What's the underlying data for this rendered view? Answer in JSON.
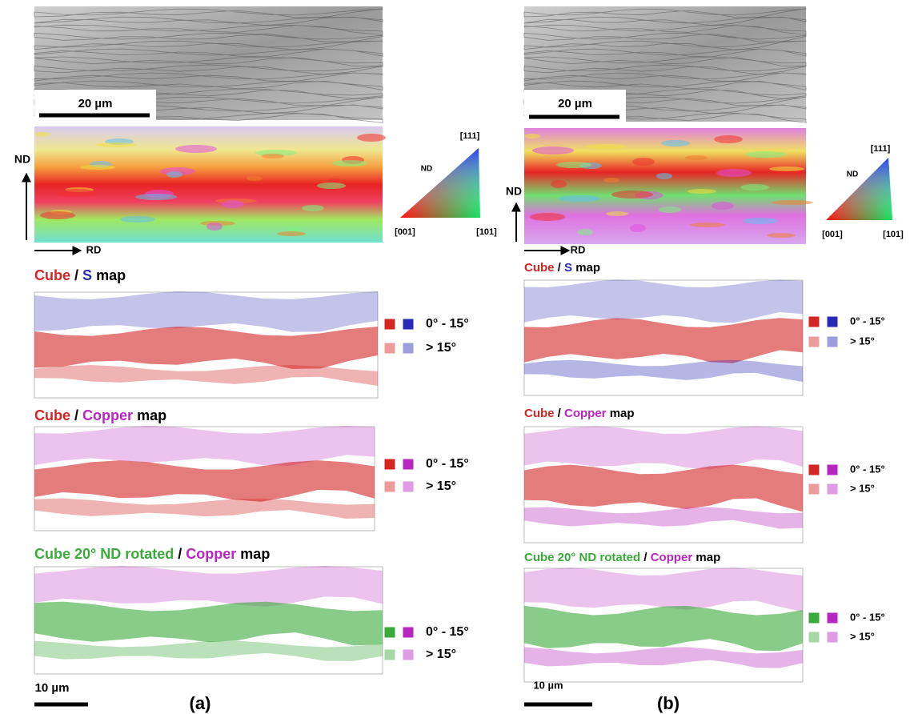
{
  "panels": [
    {
      "label": "(a)",
      "sem_scale": "20 µm",
      "axis_nd": "ND",
      "axis_rd": "RD",
      "ipf_key": {
        "nd": "ND",
        "top": "[111]",
        "left": "[001]",
        "right": "[101]"
      },
      "maps": [
        {
          "title": [
            "Cube",
            "/",
            "S",
            "map"
          ],
          "colors": [
            "#d42424",
            "#2a2ab8"
          ],
          "legend": [
            "0° - 15°",
            "> 15°"
          ]
        },
        {
          "title": [
            "Cube",
            "/",
            "Copper",
            "map"
          ],
          "colors": [
            "#d42424",
            "#b826c0"
          ],
          "legend": [
            "0° - 15°",
            "> 15°"
          ]
        },
        {
          "title": [
            "Cube 20° ND rotated",
            "/",
            "Copper",
            "map"
          ],
          "colors": [
            "#3aaa3a",
            "#b826c0"
          ],
          "legend": [
            "0° - 15°",
            "> 15°"
          ]
        }
      ],
      "map_scale": "10 µm"
    },
    {
      "label": "(b)",
      "sem_scale": "20 µm",
      "axis_nd": "ND",
      "axis_rd": "RD",
      "ipf_key": {
        "nd": "ND",
        "top": "[111]",
        "left": "[001]",
        "right": "[101]"
      },
      "maps": [
        {
          "title": [
            "Cube",
            "/",
            "S",
            "map"
          ],
          "colors": [
            "#d42424",
            "#2a2ab8"
          ],
          "legend": [
            "0° - 15°",
            "> 15°"
          ]
        },
        {
          "title": [
            "Cube",
            "/",
            "Copper",
            "map"
          ],
          "colors": [
            "#d42424",
            "#b826c0"
          ],
          "legend": [
            "0° - 15°",
            "> 15°"
          ]
        },
        {
          "title": [
            "Cube 20° ND rotated",
            "/",
            "Copper",
            "map"
          ],
          "colors": [
            "#3aaa3a",
            "#b826c0"
          ],
          "legend": [
            "0° - 15°",
            "> 15°"
          ]
        }
      ],
      "map_scale": "10 µm"
    }
  ]
}
